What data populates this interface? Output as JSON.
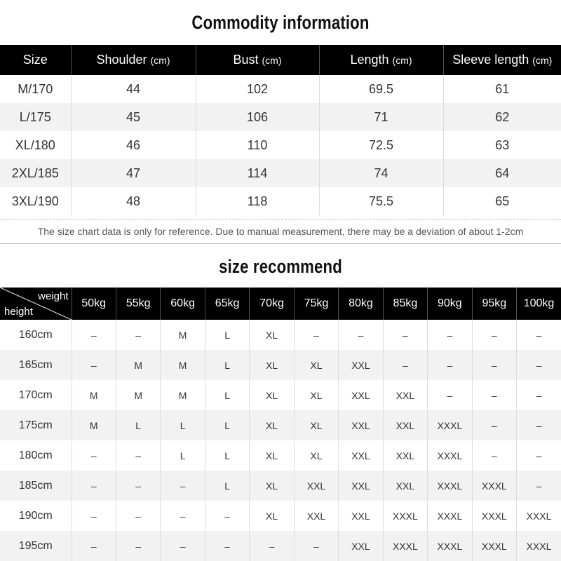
{
  "commodity": {
    "title": "Commodity information",
    "headers": [
      {
        "label": "Size",
        "unit": ""
      },
      {
        "label": "Shoulder",
        "unit": "(cm)"
      },
      {
        "label": "Bust",
        "unit": "(cm)"
      },
      {
        "label": "Length",
        "unit": "(cm)"
      },
      {
        "label": "Sleeve length",
        "unit": "(cm)"
      }
    ],
    "rows": [
      [
        "M/170",
        "44",
        "102",
        "69.5",
        "61"
      ],
      [
        "L/175",
        "45",
        "106",
        "71",
        "62"
      ],
      [
        "XL/180",
        "46",
        "110",
        "72.5",
        "63"
      ],
      [
        "2XL/185",
        "47",
        "114",
        "74",
        "64"
      ],
      [
        "3XL/190",
        "48",
        "118",
        "75.5",
        "65"
      ]
    ],
    "note": "The size chart data is only for reference. Due to manual measurement, there may be a deviation of about 1-2cm"
  },
  "recommend": {
    "title": "size recommend",
    "corner": {
      "weight": "weight",
      "height": "height"
    },
    "weights": [
      "50kg",
      "55kg",
      "60kg",
      "65kg",
      "70kg",
      "75kg",
      "80kg",
      "85kg",
      "90kg",
      "95kg",
      "100kg"
    ],
    "rows": [
      {
        "height": "160cm",
        "cells": [
          "–",
          "–",
          "M",
          "L",
          "XL",
          "–",
          "–",
          "–",
          "–",
          "–",
          "–"
        ]
      },
      {
        "height": "165cm",
        "cells": [
          "–",
          "M",
          "M",
          "L",
          "XL",
          "XL",
          "XXL",
          "–",
          "–",
          "–",
          "–"
        ]
      },
      {
        "height": "170cm",
        "cells": [
          "M",
          "M",
          "M",
          "L",
          "XL",
          "XL",
          "XXL",
          "XXL",
          "–",
          "–",
          "–"
        ]
      },
      {
        "height": "175cm",
        "cells": [
          "M",
          "L",
          "L",
          "L",
          "XL",
          "XL",
          "XXL",
          "XXL",
          "XXXL",
          "–",
          "–"
        ]
      },
      {
        "height": "180cm",
        "cells": [
          "–",
          "–",
          "L",
          "L",
          "XL",
          "XL",
          "XXL",
          "XXL",
          "XXXL",
          "–",
          "–"
        ]
      },
      {
        "height": "185cm",
        "cells": [
          "–",
          "–",
          "–",
          "L",
          "XL",
          "XXL",
          "XXL",
          "XXL",
          "XXXL",
          "XXXL",
          "–"
        ]
      },
      {
        "height": "190cm",
        "cells": [
          "–",
          "–",
          "–",
          "–",
          "XL",
          "XXL",
          "XXL",
          "XXXL",
          "XXXL",
          "XXXL",
          "XXXL"
        ]
      },
      {
        "height": "195cm",
        "cells": [
          "–",
          "–",
          "–",
          "–",
          "–",
          "–",
          "XXL",
          "XXXL",
          "XXXL",
          "XXXL",
          "XXXL"
        ]
      }
    ]
  }
}
